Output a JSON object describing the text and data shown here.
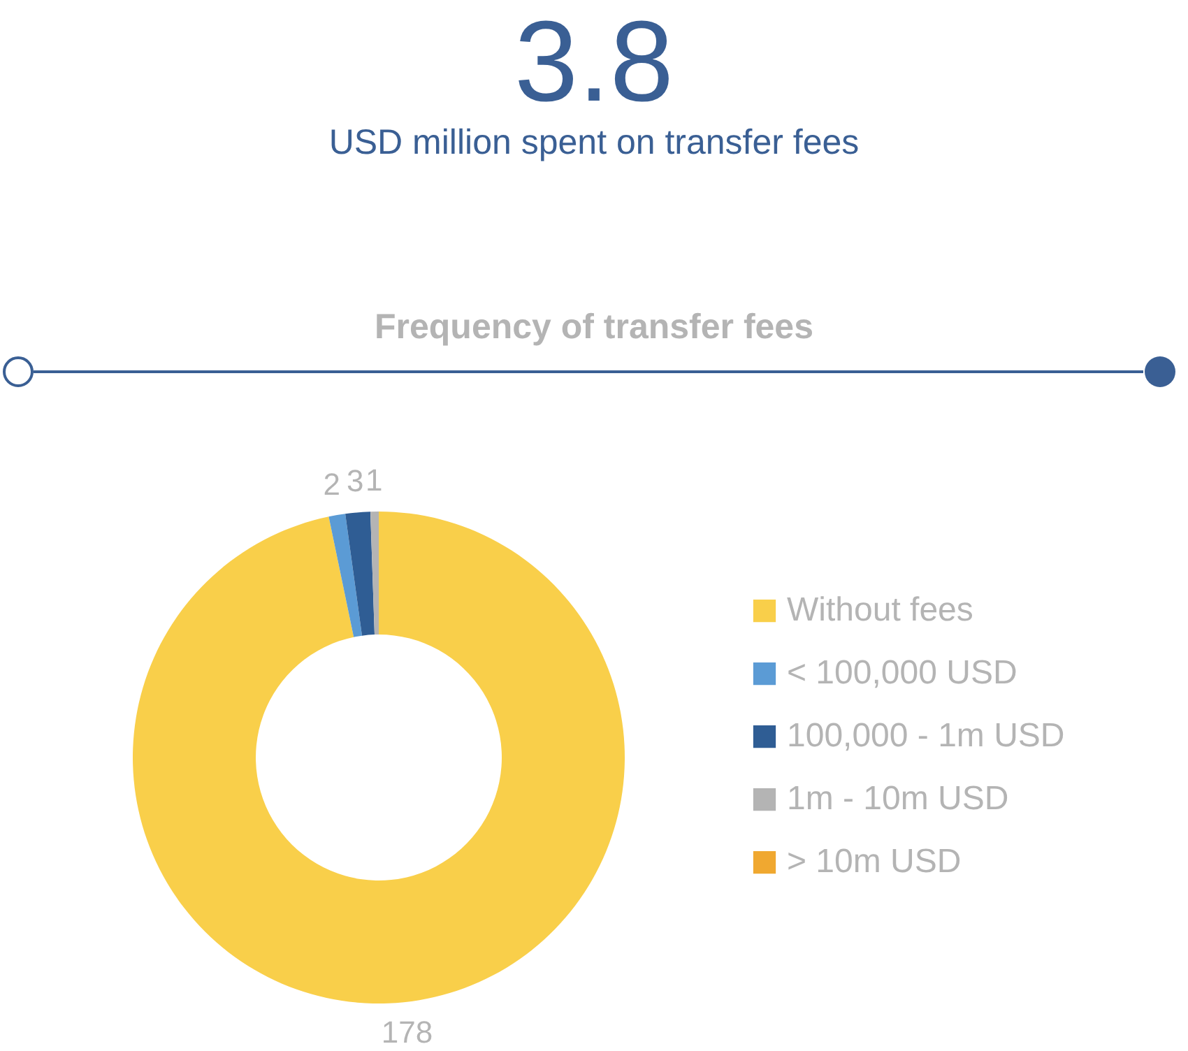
{
  "chart_data": {
    "type": "donut",
    "title": "Frequency of transfer fees",
    "annotations": [
      "3.8",
      "USD million spent on transfer fees"
    ],
    "categories": [
      "Without fees",
      "< 100,000 USD",
      "100,000 - 1m USD",
      "1m - 10m USD",
      "> 10m USD"
    ],
    "values": [
      178,
      2,
      3,
      1,
      0
    ],
    "colors": [
      "#f9cf4a",
      "#5b9bd5",
      "#2f5d94",
      "#b4b4b4",
      "#f0a830"
    ],
    "value_labels": [
      "178",
      "2",
      "3",
      "1",
      null
    ],
    "legend": "right"
  }
}
